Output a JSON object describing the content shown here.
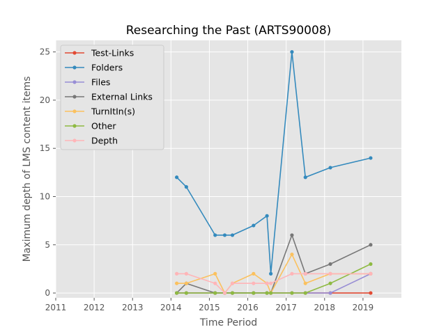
{
  "chart_data": {
    "type": "line",
    "title": "Researching the Past (ARTS90008)",
    "xlabel": "Time Period",
    "ylabel": "Maximum depth of LMS content items",
    "xlim": [
      2011,
      2020
    ],
    "ylim": [
      -0.5,
      26.2
    ],
    "x_ticks": [
      2011,
      2012,
      2013,
      2014,
      2015,
      2016,
      2017,
      2018,
      2019
    ],
    "y_ticks": [
      0,
      5,
      10,
      15,
      20,
      25
    ],
    "grid": true,
    "legend_position": "top-left",
    "x": [
      2014.15,
      2014.4,
      2015.15,
      2015.4,
      2015.6,
      2016.15,
      2016.5,
      2016.6,
      2017.15,
      2017.5,
      2018.15,
      2019.2
    ],
    "series": [
      {
        "name": "Test-Links",
        "color": "#E24A33",
        "values": [
          0,
          0,
          0,
          0,
          0,
          0,
          0,
          0,
          0,
          0,
          0,
          0
        ]
      },
      {
        "name": "Folders",
        "color": "#348ABD",
        "values": [
          12,
          11,
          6,
          6,
          6,
          7,
          8,
          2,
          25,
          12,
          13,
          14
        ]
      },
      {
        "name": "Files",
        "color": "#988ED5",
        "values": [
          0,
          0,
          0,
          0,
          0,
          0,
          0,
          0,
          0,
          0,
          0,
          2
        ]
      },
      {
        "name": "External Links",
        "color": "#777777",
        "values": [
          0,
          1,
          0,
          0,
          0,
          0,
          0,
          0,
          6,
          2,
          3,
          5
        ]
      },
      {
        "name": "TurnItIn(s)",
        "color": "#FBC15E",
        "values": [
          1,
          1,
          2,
          0,
          1,
          2,
          1,
          0,
          4,
          1,
          2,
          2
        ]
      },
      {
        "name": "Other",
        "color": "#8EBA42",
        "values": [
          0,
          0,
          0,
          0,
          0,
          0,
          0,
          0,
          0,
          0,
          1,
          3
        ]
      },
      {
        "name": "Depth",
        "color": "#FFB5B8",
        "values": [
          2,
          2,
          1,
          0,
          1,
          1,
          1,
          1,
          2,
          2,
          2,
          2
        ]
      }
    ]
  }
}
